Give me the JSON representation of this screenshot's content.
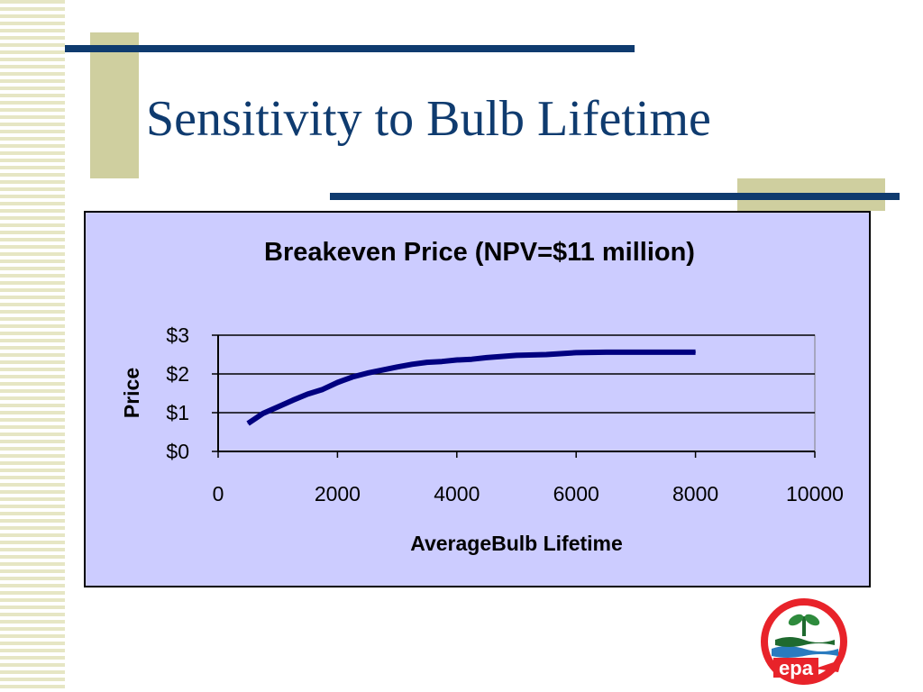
{
  "slide": {
    "title": "Sensitivity to Bulb Lifetime"
  },
  "colors": {
    "title_navy": "#0f3b6f",
    "accent_tan": "#cfcf9f",
    "chart_background": "#ccccff",
    "line_series": "#000080",
    "logo_red": "#e8232a"
  },
  "logo": {
    "text": "epa",
    "icon": "epa-logo-icon"
  },
  "chart_data": {
    "type": "line",
    "title": "Breakeven Price (NPV=$11 million)",
    "xlabel": "AverageBulb Lifetime",
    "ylabel": "Price",
    "xlim": [
      0,
      10000
    ],
    "ylim": [
      0,
      3
    ],
    "x_ticks": [
      0,
      2000,
      4000,
      6000,
      8000,
      10000
    ],
    "x_tick_labels": [
      "0",
      "2000",
      "4000",
      "6000",
      "8000",
      "10000"
    ],
    "y_ticks": [
      0,
      1,
      2,
      3
    ],
    "y_tick_labels": [
      "$0",
      "$1",
      "$2",
      "$3"
    ],
    "grid": "horizontal major gridlines",
    "legend": "none",
    "series": [
      {
        "x": [
          500,
          750,
          1000,
          1250,
          1500,
          1750,
          2000,
          2250,
          2500,
          2750,
          3000,
          3250,
          3500,
          3750,
          4000,
          4250,
          4500,
          5000,
          5500,
          6000,
          6500,
          7000,
          7500,
          8000
        ],
        "y": [
          0.72,
          0.98,
          1.15,
          1.32,
          1.48,
          1.6,
          1.78,
          1.92,
          2.02,
          2.1,
          2.18,
          2.25,
          2.3,
          2.32,
          2.36,
          2.38,
          2.42,
          2.48,
          2.5,
          2.55,
          2.56,
          2.56,
          2.56,
          2.56
        ]
      }
    ]
  }
}
